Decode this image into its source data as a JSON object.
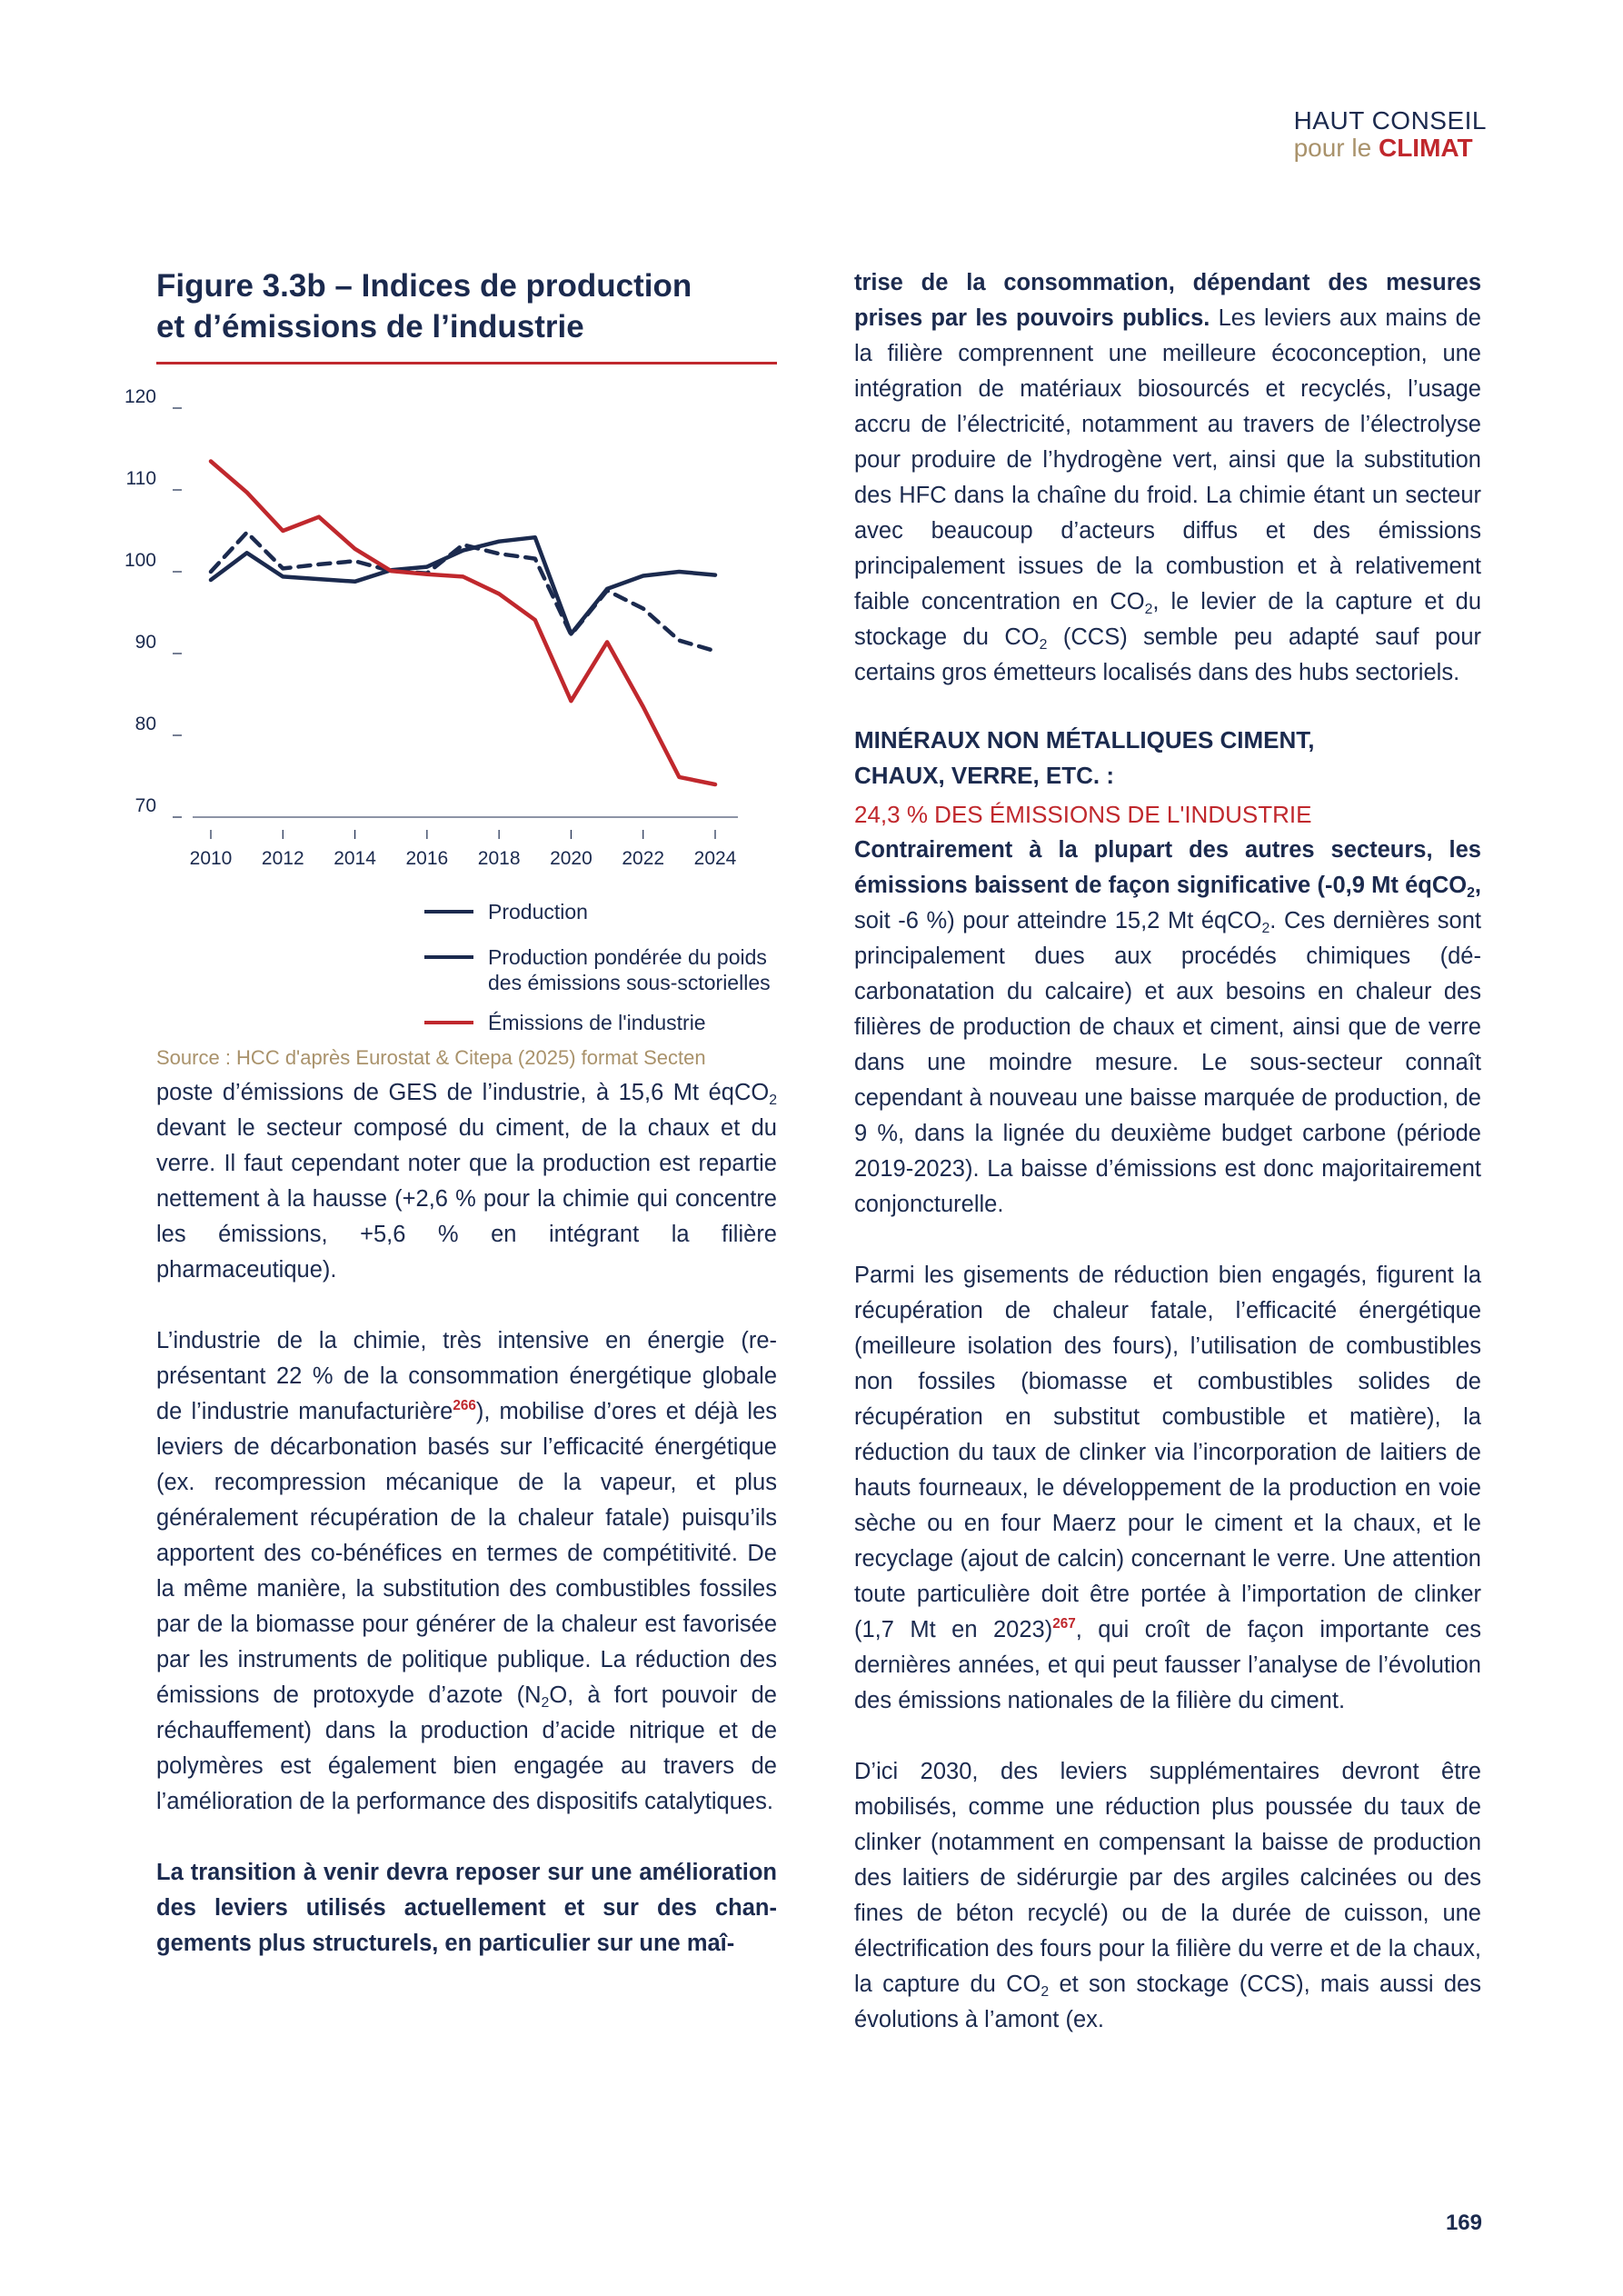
{
  "header": {
    "logo_line1": "HAUT CONSEIL",
    "logo_line2_a": "pour le",
    "logo_line2_b": "CLIMAT"
  },
  "figure": {
    "title_line1": "Figure 3.3b – Indices de production",
    "title_line2": "et d’émissions de l’industrie",
    "source": "Source : HCC d'après Eurostat & Citepa (2025) format Secten",
    "legend": [
      {
        "label_lines": [
          "Production"
        ],
        "color": "#1b2a4e",
        "style": "solid"
      },
      {
        "label_lines": [
          "Production pondérée du poids",
          "des émissions sous-sctorielles"
        ],
        "color": "#1b2a4e",
        "style": "solid"
      },
      {
        "label_lines": [
          "Émissions de l'industrie"
        ],
        "color": "#c0282d",
        "style": "solid"
      }
    ]
  },
  "chart_data": {
    "type": "line",
    "x": [
      2010,
      2011,
      2012,
      2013,
      2014,
      2015,
      2016,
      2017,
      2018,
      2019,
      2020,
      2021,
      2022,
      2023,
      2024
    ],
    "x_tick_labels": [
      "2010",
      "2012",
      "2014",
      "2016",
      "2018",
      "2020",
      "2022",
      "2024"
    ],
    "y_ticks": [
      70,
      80,
      90,
      100,
      110,
      120
    ],
    "ylim": [
      70,
      120
    ],
    "grid": false,
    "series": [
      {
        "name": "Production",
        "color": "#1b2a4e",
        "dash": false,
        "values": [
          99,
          102.3,
          99.4,
          99.1,
          98.8,
          100.2,
          100.6,
          102.6,
          103.7,
          104.2,
          92.4,
          97.9,
          99.5,
          100,
          99.6
        ]
      },
      {
        "name": "Production pondérée du poids des émissions sous-sctorielles",
        "color": "#1b2a4e",
        "dash": true,
        "values": [
          100,
          104.8,
          100.4,
          100.9,
          101.3,
          100.1,
          99.8,
          103.3,
          102.2,
          101.6,
          92.3,
          97.7,
          95.5,
          91.6,
          90.3
        ]
      },
      {
        "name": "Émissions de l'industrie",
        "color": "#c0282d",
        "dash": false,
        "values": [
          113.5,
          109.7,
          105,
          106.7,
          102.8,
          100.1,
          99.7,
          99.4,
          97.3,
          94.1,
          84.2,
          91.4,
          83.5,
          74.9,
          74
        ]
      }
    ]
  },
  "left_text": {
    "p1_a": "poste d’émissions de GES de l’industrie, à 15,6 Mt éqCO",
    "p1_sub": "2",
    "p1_b": " devant le secteur composé du ciment, de la chaux et du verre. Il faut cependant noter que la production est repartie nettement à la hausse (+2,6 % pour la chimie qui concentre les émissions, +5,6 % en intégrant la filière pharmaceutique).",
    "p2_a": "L’industrie de la chimie, très intensive en énergie (re­présentant 22 % de la consommation énergétique glo­bale de l’industrie manufacturière",
    "p2_sup": "266",
    "p2_b": "), mobilise d’ores et déjà les leviers de décarbonation basés sur l’effica­cité énergétique (ex. recompression mécanique de la vapeur, et plus généralement récupération de la cha­leur fatale) puisqu’ils apportent des co-bénéfices en termes de compétitivité. De la même manière, la subs­titution des combustibles fossiles par de la biomasse pour générer de la chaleur est favorisée par les instru­ments de politique publique. La réduction des émis­sions de protoxyde d’azote (N",
    "p2_sub": "2",
    "p2_c": "O, à fort pouvoir de réchauffement) dans la production d’acide nitrique et de polymères est également bien engagée au travers de l’amélioration de la performance des dispositifs catalytiques.",
    "p3_bold": "La transition à venir devra reposer sur une améliora­tion des leviers utilisés actuellement et sur des chan­gements plus structurels, en particulier sur une maî-"
  },
  "right_text": {
    "p1_bold": "trise de la consommation, dépendant des mesures prises par les pouvoirs publics.",
    "p1_a": " Les leviers aux mains de la filière comprennent une meilleure écoconcep­tion, une intégration de matériaux biosourcés et recy­clés, l’usage accru de l’électricité, notamment au tra­vers de l’électrolyse pour produire de l’hydrogène vert, ainsi que la substitution des HFC dans la chaîne du froid. La chimie étant un secteur avec beaucoup d’ac­teurs diffus et des émissions principalement issues de la combustion et à relativement faible concentration en CO",
    "p1_sub1": "2",
    "p1_b": ", le levier de la capture et du stockage du CO",
    "p1_sub2": "2",
    "p1_c": " (CCS) semble peu adapté sauf pour certains gros émetteurs localisés dans des hubs sectoriels.",
    "section_title_1": "MINÉRAUX NON MÉTALLIQUES CIMENT,",
    "section_title_2": "CHAUX, VERRE, ETC. :",
    "section_share": "24,3 % DES ÉMISSIONS DE L'INDUSTRIE",
    "p2_bold_a": "Contrairement à la plupart des autres secteurs, les émissions baissent de façon significative (-0,9 Mt éqCO",
    "p2_bold_sub": "2",
    "p2_bold_b": ",",
    "p2_a": " soit -6 %) pour atteindre 15,2 Mt éqCO",
    "p2_sub": "2",
    "p2_b": ". Ces dernières sont principalement dues aux procédés chimiques (dé­carbonatation du calcaire) et aux besoins en chaleur des filières de production de chaux et ciment, ainsi que de verre dans une moindre mesure. Le sous-secteur connaît cependant à nouveau une baisse marquée de production, de 9 %, dans la lignée du deuxième budget carbone (période 2019-2023). La baisse d’émissions est donc majoritairement conjoncturelle.",
    "p3_a": "Parmi les gisements de réduction bien engagés, figurent la récupération de chaleur fatale, l’efficacité énergé­tique (meilleure isolation des fours), l’utilisation de com­bustibles non fossiles (biomasse et combustibles solides de récupération en substitut combustible et matière), la réduction du taux de clinker via l’incorporation de laitiers de hauts fourneaux, le développement de la production en voie sèche ou en four Maerz pour le ciment et la chaux, et le recyclage (ajout de calcin) concernant le verre. Une attention toute particulière doit être portée à l’importation de clinker (1,7 Mt en 2023)",
    "p3_sup": "267",
    "p3_b": ", qui croît de façon importante ces dernières années, et qui peut fausser l’analyse de l’évolution des émissions nationales de la filière du ciment.",
    "p4_a": "D’ici 2030, des leviers supplémentaires devront être mobilisés, comme une réduction plus poussée du taux de clinker (notamment en compensant la baisse de production des laitiers de sidérurgie par des argiles calcinées ou des fines de béton recyclé) ou de la durée de cuisson, une électrification des fours pour la filière du verre et de la chaux, la capture du CO",
    "p4_sub": "2",
    "p4_b": " et son stoc­kage (CCS), mais aussi des évolutions à l’amont (ex."
  },
  "footer": {
    "page_number": "169"
  }
}
